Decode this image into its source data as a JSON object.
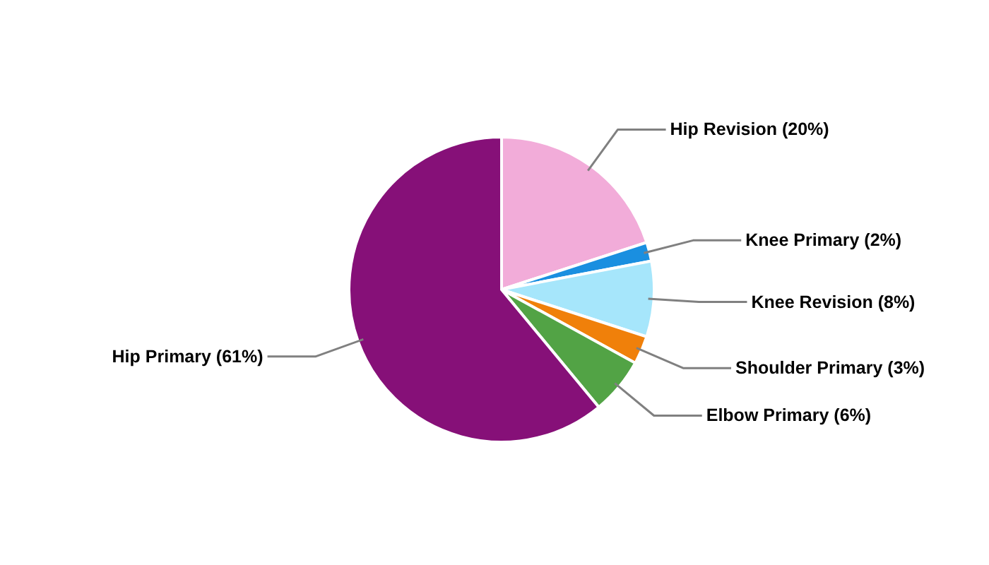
{
  "chart_data": {
    "type": "pie",
    "categories": [
      "Hip Revision (20%)",
      "Knee Primary (2%)",
      "Knee Revision (8%)",
      "Shoulder Primary (3%)",
      "Elbow Primary (6%)",
      "Hip Primary (61%)"
    ],
    "values": [
      20,
      2,
      8,
      3,
      6,
      61
    ],
    "colors": [
      "#f2acd9",
      "#1a8fe0",
      "#a6e6fb",
      "#f0800a",
      "#52a345",
      "#861078"
    ],
    "legend": false
  }
}
